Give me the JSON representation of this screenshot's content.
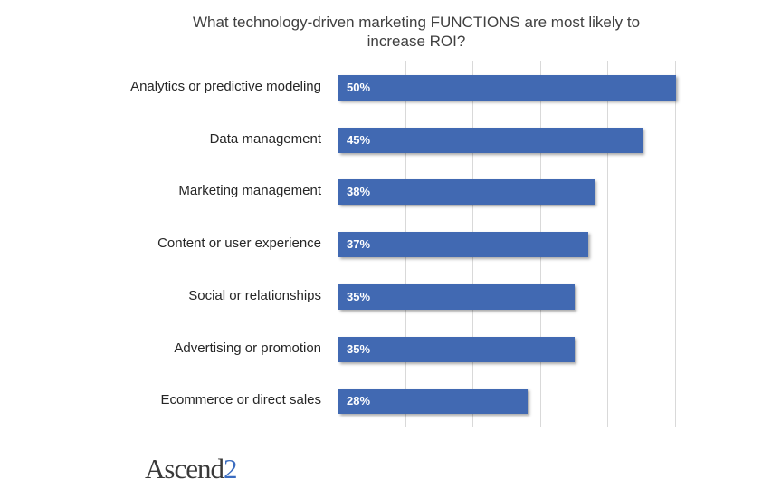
{
  "chart_data": {
    "type": "bar",
    "orientation": "horizontal",
    "title": "What technology-driven marketing FUNCTIONS are most likely to increase ROI?",
    "categories": [
      "Analytics or predictive modeling",
      "Data management",
      "Marketing management",
      "Content or user experience",
      "Social or relationships",
      "Advertising or promotion",
      "Ecommerce or direct sales"
    ],
    "values": [
      50,
      45,
      38,
      37,
      35,
      35,
      28
    ],
    "labels": [
      "50%",
      "45%",
      "38%",
      "37%",
      "35%",
      "35%",
      "28%"
    ],
    "xlabel": "",
    "ylabel": "",
    "xlim": [
      0,
      50
    ],
    "grid": true,
    "bar_color": "#4169b2"
  },
  "logo": {
    "text": "Ascend",
    "suffix": "2"
  }
}
